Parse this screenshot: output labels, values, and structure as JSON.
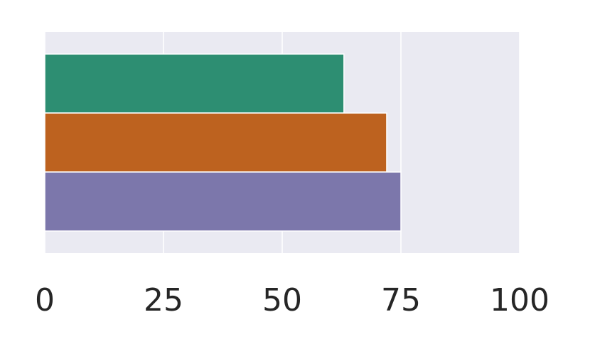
{
  "chart_data": {
    "type": "barh",
    "categories": [
      null,
      null,
      null
    ],
    "values": [
      63,
      72,
      75
    ],
    "colors": [
      "#2d8e72",
      "#bd621f",
      "#7c77ab"
    ],
    "xlim": [
      0,
      100
    ],
    "xticks": [
      0,
      25,
      50,
      75,
      100
    ],
    "grid": true
  }
}
